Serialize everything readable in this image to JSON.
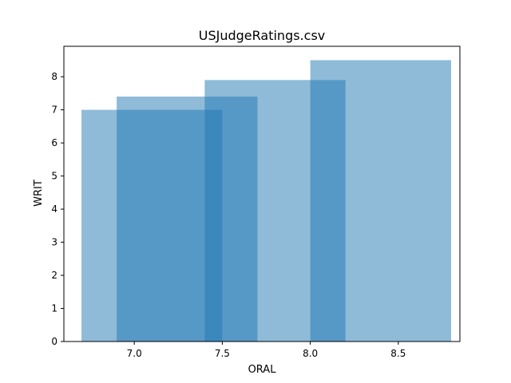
{
  "chart_data": {
    "type": "bar",
    "title": "USJudgeRatings.csv",
    "xlabel": "ORAL",
    "ylabel": "WRIT",
    "xlim": [
      6.6,
      8.85
    ],
    "ylim": [
      0,
      8.92
    ],
    "xticks": [
      "7.0",
      "7.5",
      "8.0",
      "8.5"
    ],
    "xtick_values": [
      7.0,
      7.5,
      8.0,
      8.5
    ],
    "yticks": [
      "0",
      "1",
      "2",
      "3",
      "4",
      "5",
      "6",
      "7",
      "8"
    ],
    "ytick_values": [
      0,
      1,
      2,
      3,
      4,
      5,
      6,
      7,
      8
    ],
    "bars": [
      {
        "x": 7.1,
        "width": 0.8,
        "value": 7.0
      },
      {
        "x": 7.3,
        "width": 0.8,
        "value": 7.4
      },
      {
        "x": 7.8,
        "width": 0.8,
        "value": 7.9
      },
      {
        "x": 8.4,
        "width": 0.8,
        "value": 8.5
      }
    ],
    "bar_color": "#1f77b4",
    "bar_opacity": 0.5,
    "grid": false,
    "legend": "none"
  }
}
